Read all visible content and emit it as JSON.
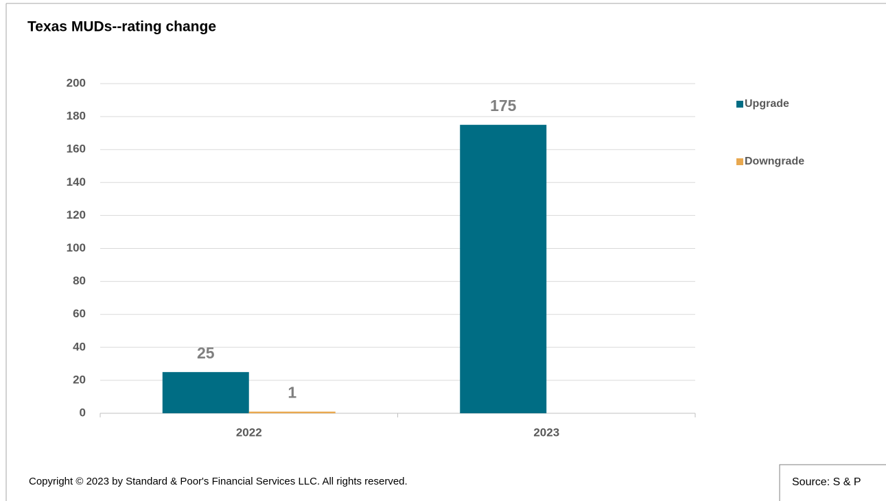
{
  "chart_data": {
    "type": "bar",
    "title": "Texas MUDs--rating change",
    "categories": [
      "2022",
      "2023"
    ],
    "series": [
      {
        "name": "Upgrade",
        "color": "#006d84",
        "values": [
          25,
          175
        ]
      },
      {
        "name": "Downgrade",
        "color": "#e8a84f",
        "values": [
          1,
          null
        ]
      }
    ],
    "ylim": [
      0,
      200
    ],
    "yticks": [
      0,
      20,
      40,
      60,
      80,
      100,
      120,
      140,
      160,
      180,
      200
    ],
    "grid": true,
    "legend": "right",
    "data_labels": true
  },
  "footer": {
    "copyright": "Copyright © 2023 by Standard & Poor's Financial Services LLC. All rights reserved.",
    "source": "Source: S & P"
  }
}
